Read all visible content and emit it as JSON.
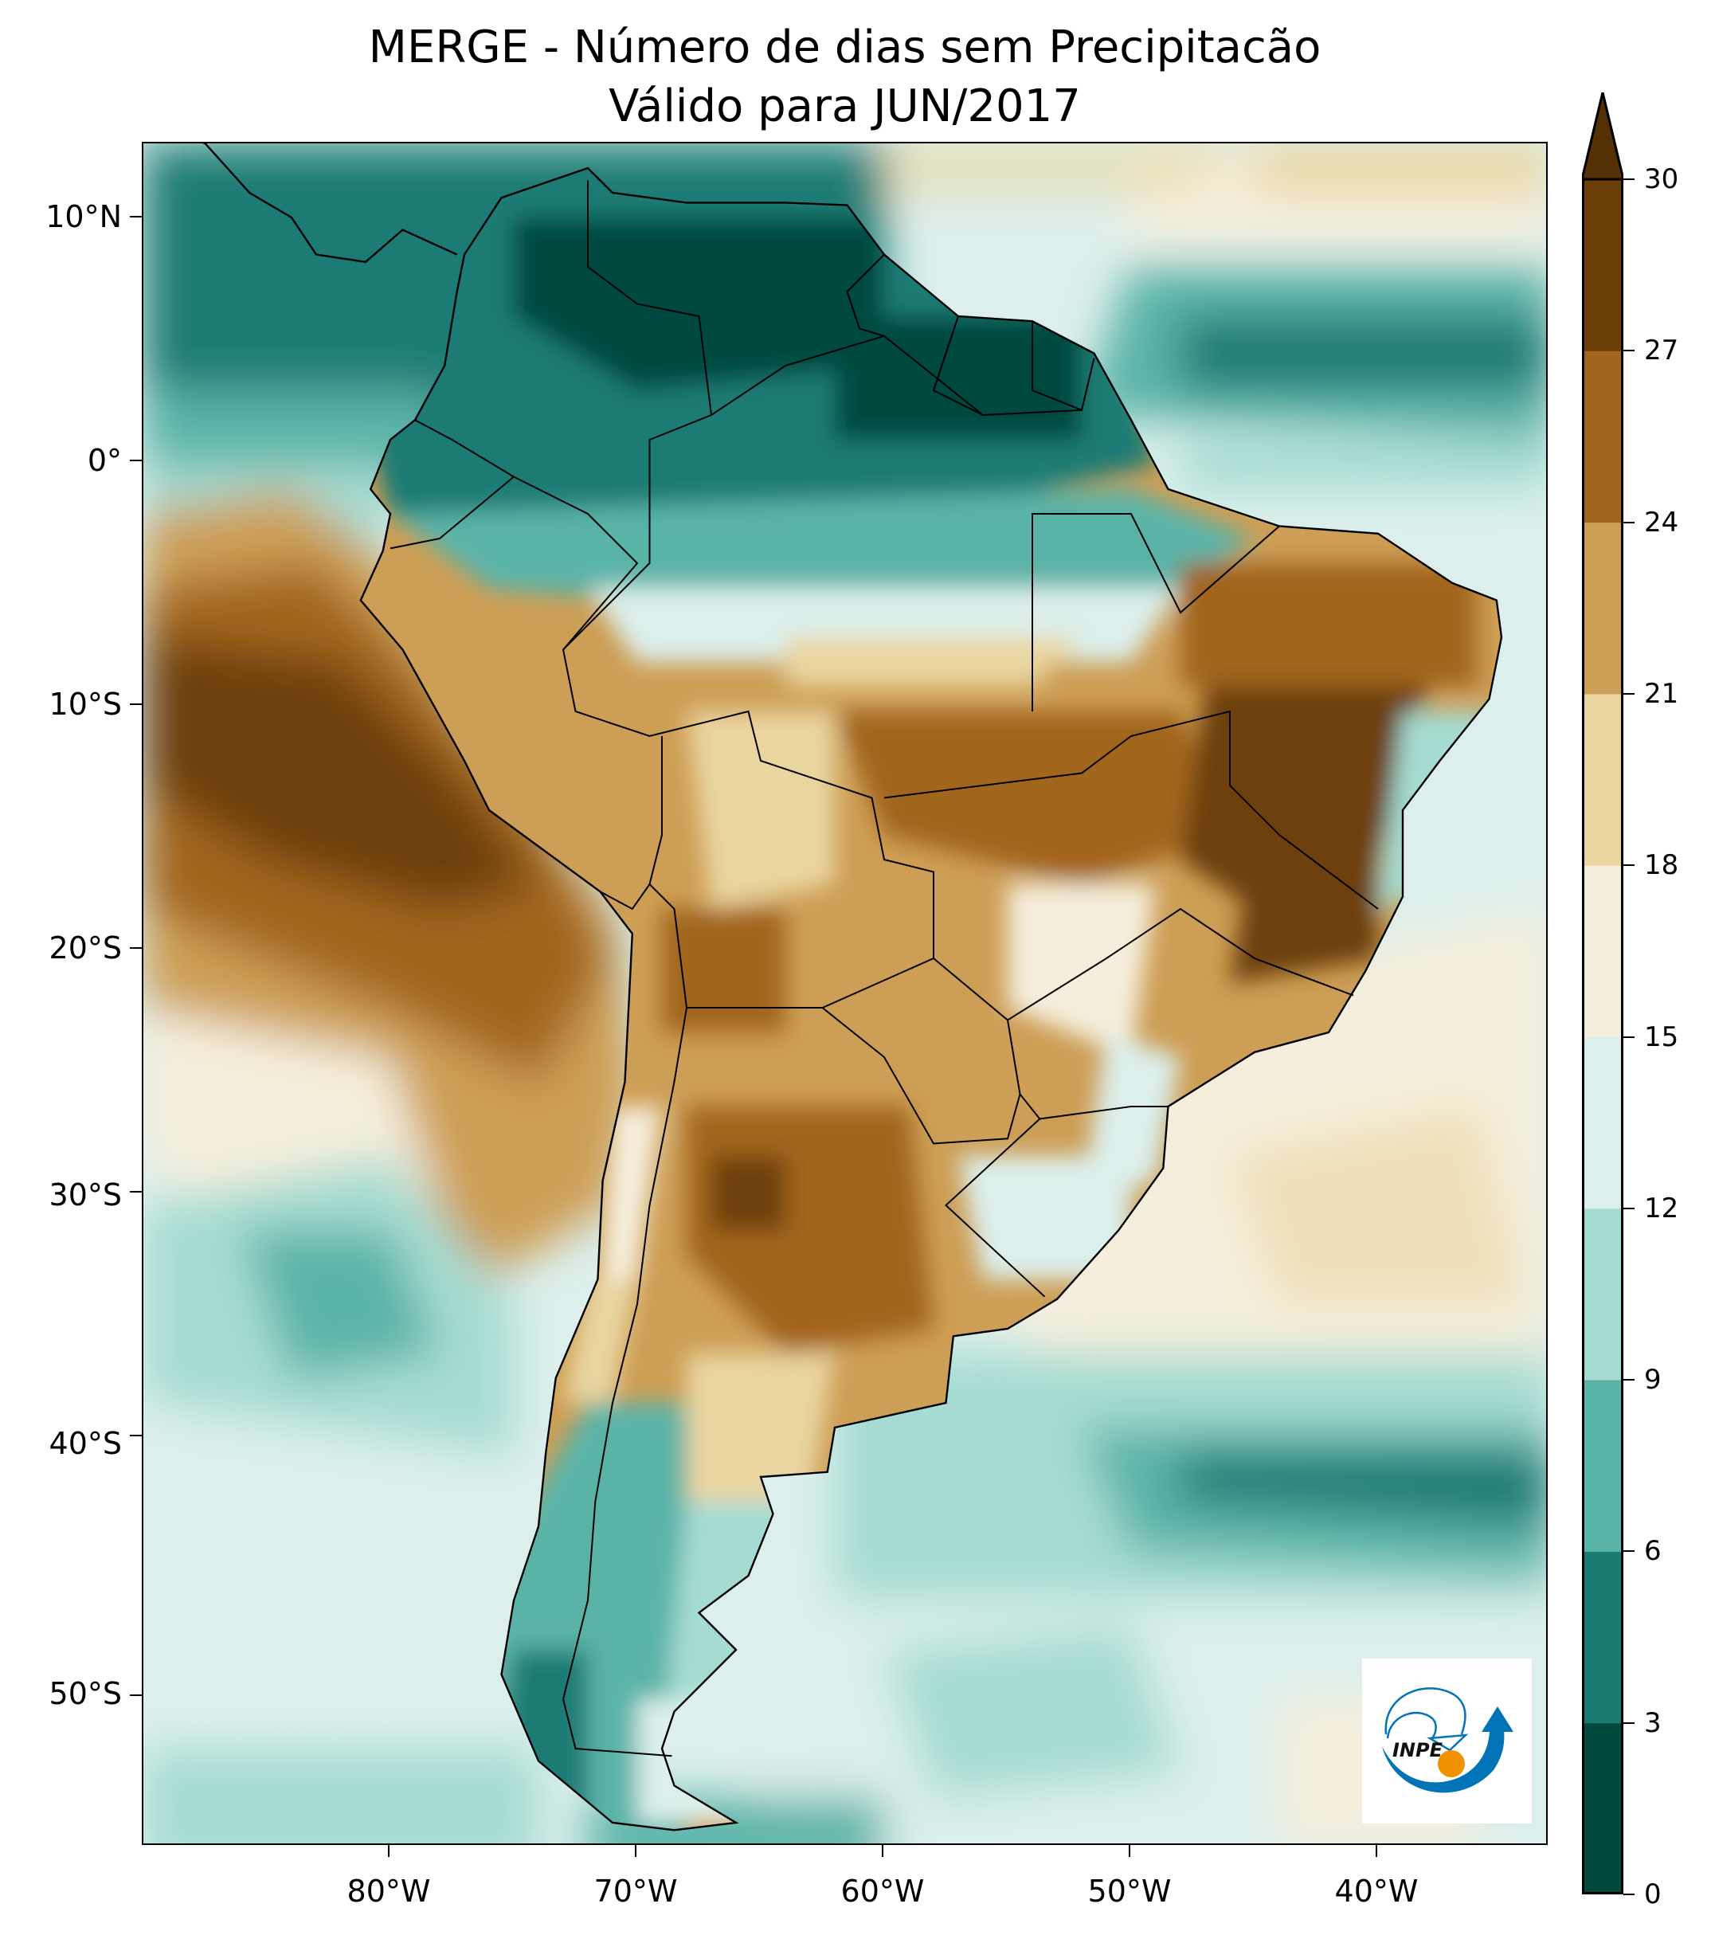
{
  "title": {
    "line1": "MERGE - Número de dias sem Precipitacão",
    "line2": "Válido para JUN/2017"
  },
  "axes": {
    "lat_labels": [
      "10°N",
      "0°",
      "10°S",
      "20°S",
      "30°S",
      "40°S",
      "50°S"
    ],
    "lon_labels": [
      "80°W",
      "70°W",
      "60°W",
      "50°W",
      "40°W"
    ]
  },
  "colorbar": {
    "ticks": [
      "0",
      "3",
      "6",
      "9",
      "12",
      "15",
      "18",
      "21",
      "24",
      "27",
      "30"
    ],
    "colors": [
      "#01493f",
      "#1a7b74",
      "#5ab3a7",
      "#a5dbd2",
      "#dcefec",
      "#f5eedc",
      "#ead5a0",
      "#cd9e55",
      "#a2651d",
      "#6d3f08"
    ],
    "extend_color": "#543005",
    "extend": "max"
  },
  "logo": {
    "text": "INPE",
    "blue": "#0074b7",
    "orange": "#f39200"
  },
  "chart_data": {
    "type": "heatmap",
    "title": "MERGE - Número de dias sem Precipitacão / Válido para JUN/2017",
    "variable": "Número de dias sem Precipitacão",
    "levels": [
      0,
      3,
      6,
      9,
      12,
      15,
      18,
      21,
      24,
      27,
      30
    ],
    "lon_range": [
      -90,
      -33
    ],
    "lat_range": [
      -57,
      13
    ],
    "regions": [
      {
        "area": "Northern South America / Caribbean band",
        "days": "0-9"
      },
      {
        "area": "Amazon (north)",
        "days": "6-12"
      },
      {
        "area": "Central & Northeast Brazil interior",
        "days": "24-30"
      },
      {
        "area": "Eastern Pacific off Peru/Chile",
        "days": "24-30"
      },
      {
        "area": "Northern & central Argentina",
        "days": "21-30"
      },
      {
        "area": "Southern Brazil / Uruguay",
        "days": "12-24"
      },
      {
        "area": "Patagonia & Southern Ocean",
        "days": "6-15"
      },
      {
        "area": "South Atlantic subtropics",
        "days": "15-21"
      }
    ]
  }
}
